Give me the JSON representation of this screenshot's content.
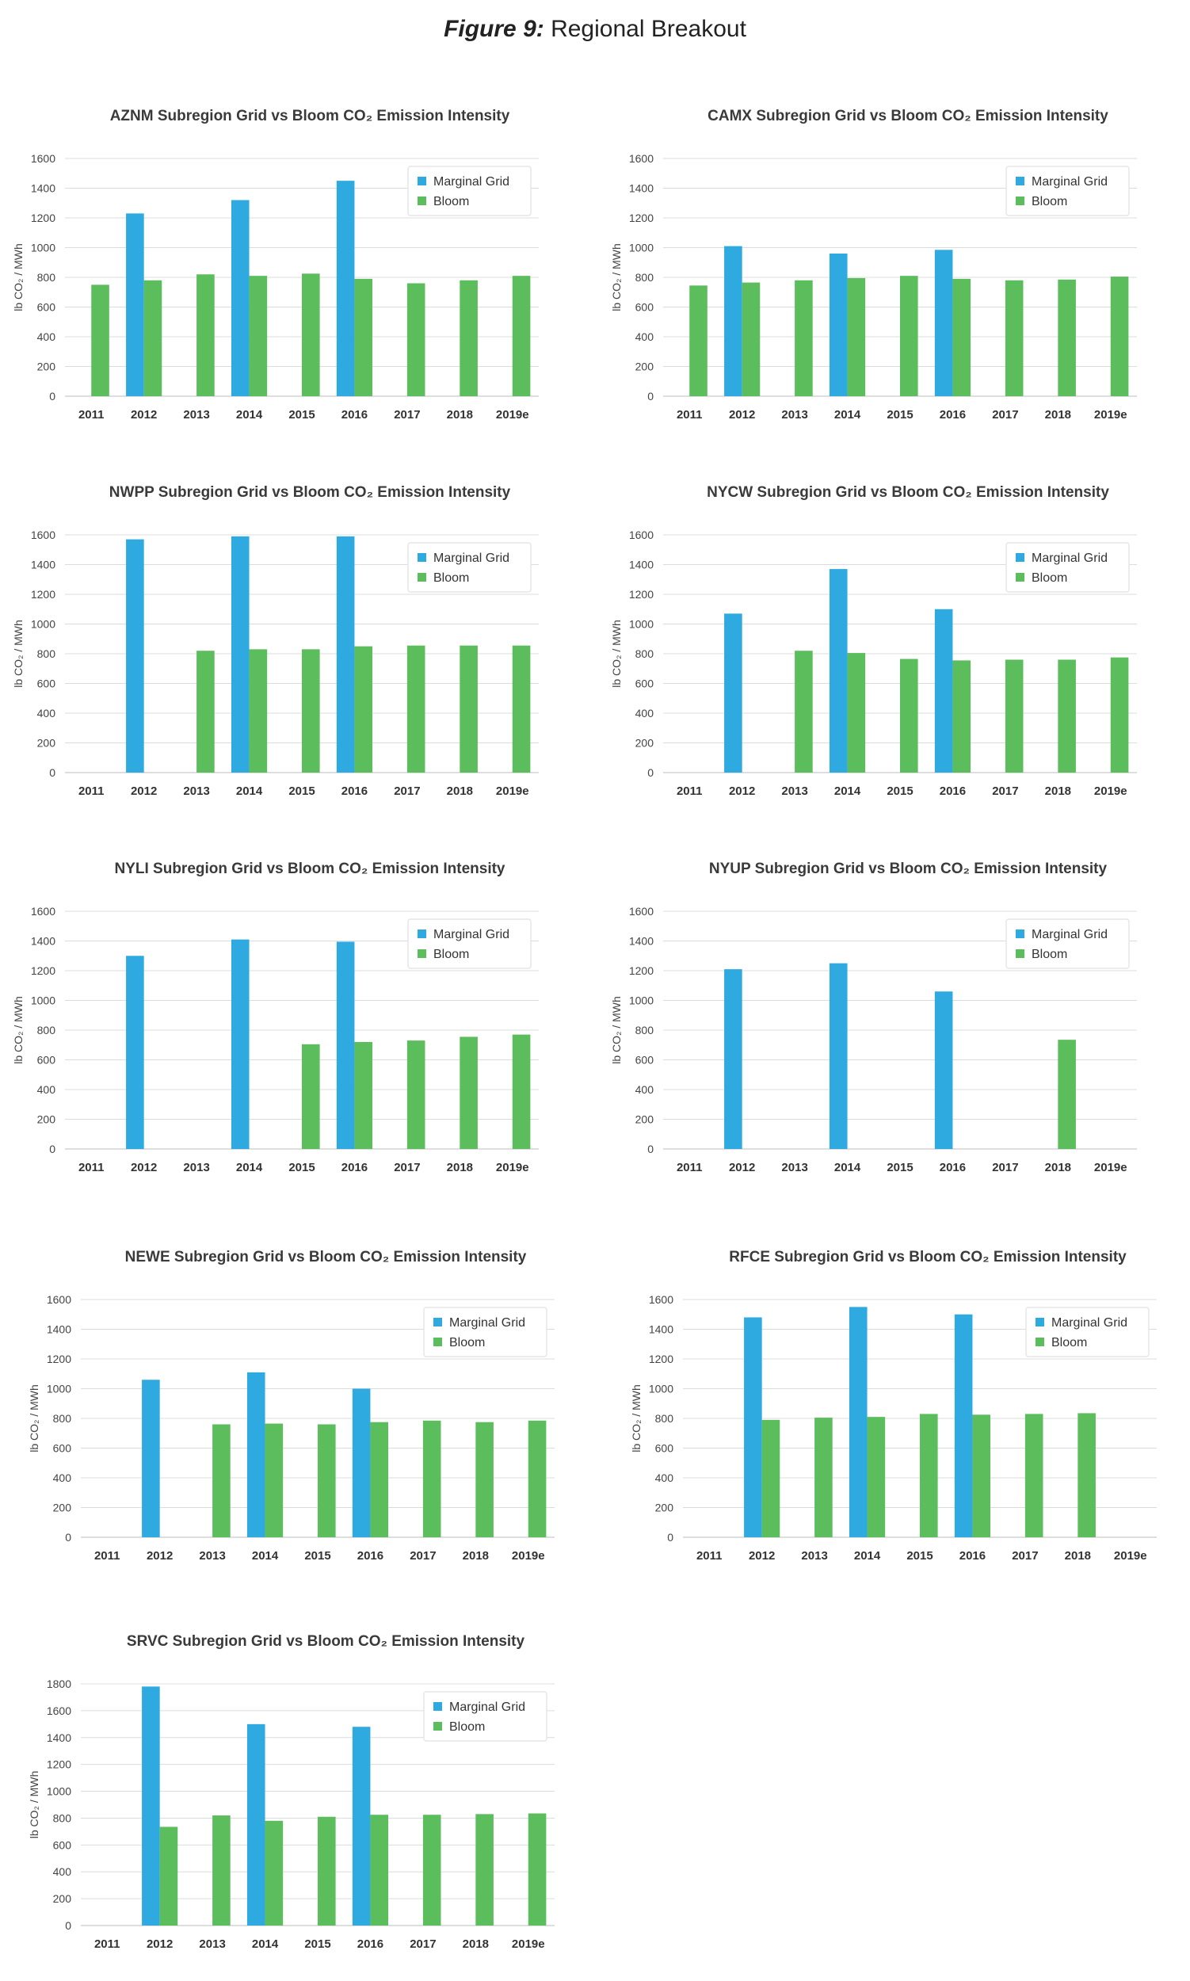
{
  "figure": {
    "label": "Figure 9:",
    "title": " Regional Breakout"
  },
  "colors": {
    "grid_series": "#2eaae1",
    "bloom_series": "#5cbd5c"
  },
  "chart_data": [
    {
      "id": "aznm",
      "type": "bar",
      "subregion": "AZNM",
      "title": "AZNM Subregion Grid vs Bloom CO₂ Emission Intensity",
      "ylabel": "lb CO₂ / MWh",
      "ylim": [
        0,
        1600
      ],
      "yticks": [
        0,
        200,
        400,
        600,
        800,
        1000,
        1200,
        1400,
        1600
      ],
      "categories": [
        "2011",
        "2012",
        "2013",
        "2014",
        "2015",
        "2016",
        "2017",
        "2018",
        "2019e"
      ],
      "legend": "top-right",
      "grid": true,
      "series": [
        {
          "name": "Marginal Grid",
          "values": [
            null,
            1230,
            null,
            1320,
            null,
            1450,
            null,
            null,
            null
          ]
        },
        {
          "name": "Bloom",
          "values": [
            750,
            780,
            820,
            810,
            825,
            790,
            760,
            780,
            810
          ]
        }
      ]
    },
    {
      "id": "camx",
      "type": "bar",
      "subregion": "CAMX",
      "title": "CAMX  Subregion Grid vs Bloom CO₂ Emission Intensity",
      "ylabel": "lb CO₂ / MWh",
      "ylim": [
        0,
        1600
      ],
      "yticks": [
        0,
        200,
        400,
        600,
        800,
        1000,
        1200,
        1400,
        1600
      ],
      "categories": [
        "2011",
        "2012",
        "2013",
        "2014",
        "2015",
        "2016",
        "2017",
        "2018",
        "2019e"
      ],
      "legend": "top-right",
      "grid": true,
      "series": [
        {
          "name": "Marginal Grid",
          "values": [
            null,
            1010,
            null,
            960,
            null,
            985,
            null,
            null,
            null
          ]
        },
        {
          "name": "Bloom",
          "values": [
            745,
            765,
            780,
            795,
            810,
            790,
            780,
            785,
            805
          ]
        }
      ]
    },
    {
      "id": "nwpp",
      "type": "bar",
      "subregion": "NWPP",
      "title": "NWPP Subregion Grid vs Bloom CO₂ Emission Intensity",
      "ylabel": "lb CO₂ / MWh",
      "ylim": [
        0,
        1600
      ],
      "yticks": [
        0,
        200,
        400,
        600,
        800,
        1000,
        1200,
        1400,
        1600
      ],
      "categories": [
        "2011",
        "2012",
        "2013",
        "2014",
        "2015",
        "2016",
        "2017",
        "2018",
        "2019e"
      ],
      "legend": "top-right",
      "grid": true,
      "series": [
        {
          "name": "Marginal Grid",
          "values": [
            null,
            1570,
            null,
            1590,
            null,
            1590,
            null,
            null,
            null
          ]
        },
        {
          "name": "Bloom",
          "values": [
            null,
            null,
            820,
            830,
            830,
            850,
            855,
            855,
            855
          ]
        }
      ]
    },
    {
      "id": "nycw",
      "type": "bar",
      "subregion": "NYCW",
      "title": "NYCW Subregion Grid vs Bloom CO₂ Emission Intensity",
      "ylabel": "lb CO₂ / MWh",
      "ylim": [
        0,
        1600
      ],
      "yticks": [
        0,
        200,
        400,
        600,
        800,
        1000,
        1200,
        1400,
        1600
      ],
      "categories": [
        "2011",
        "2012",
        "2013",
        "2014",
        "2015",
        "2016",
        "2017",
        "2018",
        "2019e"
      ],
      "legend": "top-right",
      "grid": true,
      "series": [
        {
          "name": "Marginal Grid",
          "values": [
            null,
            1070,
            null,
            1370,
            null,
            1100,
            null,
            null,
            null
          ]
        },
        {
          "name": "Bloom",
          "values": [
            null,
            null,
            820,
            805,
            765,
            755,
            760,
            760,
            775
          ]
        }
      ]
    },
    {
      "id": "nyli",
      "type": "bar",
      "subregion": "NYLI",
      "title": "NYLI Subregion Grid vs Bloom CO₂ Emission Intensity",
      "ylabel": "lb CO₂ / MWh",
      "ylim": [
        0,
        1600
      ],
      "yticks": [
        0,
        200,
        400,
        600,
        800,
        1000,
        1200,
        1400,
        1600
      ],
      "categories": [
        "2011",
        "2012",
        "2013",
        "2014",
        "2015",
        "2016",
        "2017",
        "2018",
        "2019e"
      ],
      "legend": "top-right",
      "grid": true,
      "series": [
        {
          "name": "Marginal Grid",
          "values": [
            null,
            1300,
            null,
            1410,
            null,
            1395,
            null,
            null,
            null
          ]
        },
        {
          "name": "Bloom",
          "values": [
            null,
            null,
            null,
            null,
            705,
            720,
            730,
            755,
            770
          ]
        }
      ]
    },
    {
      "id": "nyup",
      "type": "bar",
      "subregion": "NYUP",
      "title": "NYUP Subregion Grid vs Bloom CO₂ Emission Intensity",
      "ylabel": "lb CO₂ / MWh",
      "ylim": [
        0,
        1600
      ],
      "yticks": [
        0,
        200,
        400,
        600,
        800,
        1000,
        1200,
        1400,
        1600
      ],
      "categories": [
        "2011",
        "2012",
        "2013",
        "2014",
        "2015",
        "2016",
        "2017",
        "2018",
        "2019e"
      ],
      "legend": "top-right",
      "grid": true,
      "series": [
        {
          "name": "Marginal Grid",
          "values": [
            null,
            1210,
            null,
            1250,
            null,
            1060,
            null,
            null,
            null
          ]
        },
        {
          "name": "Bloom",
          "values": [
            null,
            null,
            null,
            null,
            null,
            null,
            null,
            735,
            null
          ]
        }
      ]
    },
    {
      "id": "newe",
      "type": "bar",
      "subregion": "NEWE",
      "title": "NEWE Subregion Grid vs Bloom CO₂ Emission Intensity",
      "ylabel": "lb CO₂ / MWh",
      "ylim": [
        0,
        1600
      ],
      "yticks": [
        0,
        200,
        400,
        600,
        800,
        1000,
        1200,
        1400,
        1600
      ],
      "categories": [
        "2011",
        "2012",
        "2013",
        "2014",
        "2015",
        "2016",
        "2017",
        "2018",
        "2019e"
      ],
      "legend": "top-right",
      "grid": true,
      "series": [
        {
          "name": "Marginal Grid",
          "values": [
            null,
            1060,
            null,
            1110,
            null,
            1000,
            null,
            null,
            null
          ]
        },
        {
          "name": "Bloom",
          "values": [
            null,
            null,
            760,
            765,
            760,
            775,
            785,
            775,
            785
          ]
        }
      ]
    },
    {
      "id": "rfce",
      "type": "bar",
      "subregion": "RFCE",
      "title": "RFCE Subregion Grid vs Bloom CO₂ Emission Intensity",
      "ylabel": "lb CO₂ / MWh",
      "ylim": [
        0,
        1600
      ],
      "yticks": [
        0,
        200,
        400,
        600,
        800,
        1000,
        1200,
        1400,
        1600
      ],
      "categories": [
        "2011",
        "2012",
        "2013",
        "2014",
        "2015",
        "2016",
        "2017",
        "2018",
        "2019e"
      ],
      "legend": "top-right",
      "grid": true,
      "series": [
        {
          "name": "Marginal Grid",
          "values": [
            null,
            1480,
            null,
            1550,
            null,
            1500,
            null,
            null,
            null
          ]
        },
        {
          "name": "Bloom",
          "values": [
            null,
            790,
            805,
            810,
            830,
            825,
            830,
            835,
            null
          ]
        }
      ]
    },
    {
      "id": "srvc",
      "type": "bar",
      "subregion": "SRVC",
      "title": "SRVC Subregion Grid vs Bloom CO₂ Emission Intensity",
      "ylabel": "lb CO₂ / MWh",
      "ylim": [
        0,
        1800
      ],
      "yticks": [
        0,
        200,
        400,
        600,
        800,
        1000,
        1200,
        1400,
        1600,
        1800
      ],
      "categories": [
        "2011",
        "2012",
        "2013",
        "2014",
        "2015",
        "2016",
        "2017",
        "2018",
        "2019e"
      ],
      "legend": "top-right",
      "grid": true,
      "series": [
        {
          "name": "Marginal Grid",
          "values": [
            null,
            1780,
            null,
            1500,
            null,
            1480,
            null,
            null,
            null
          ]
        },
        {
          "name": "Bloom",
          "values": [
            null,
            735,
            820,
            780,
            810,
            825,
            825,
            830,
            835
          ]
        }
      ]
    }
  ]
}
